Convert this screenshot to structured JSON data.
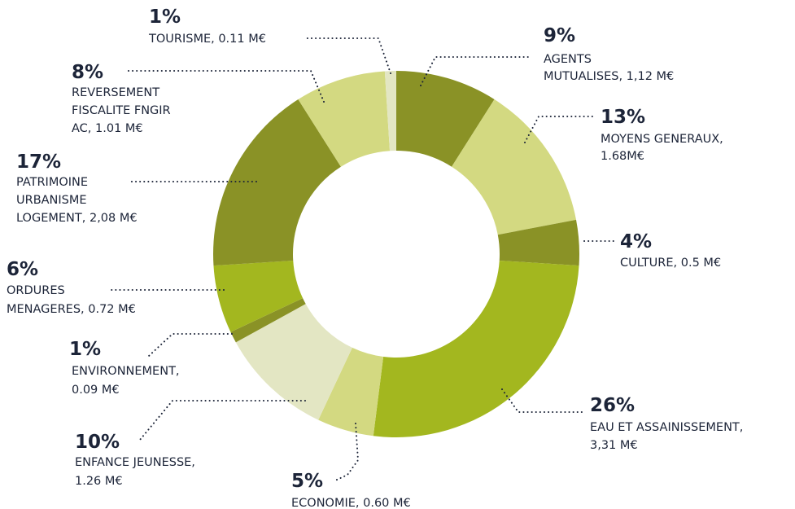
{
  "chart_data": {
    "type": "pie",
    "categories": [
      [
        "AGENTS",
        "MUTUALISES, 1,12 M€"
      ],
      [
        "MOYENS GENERAUX,",
        "1.68M€"
      ],
      [
        "CULTURE, 0.5 M€"
      ],
      [
        "EAU ET ASSAINISSEMENT,",
        "3,31 M€"
      ],
      [
        "ECONOMIE, 0.60 M€"
      ],
      [
        "ENFANCE JEUNESSE,",
        "1.26 M€"
      ],
      [
        "ENVIRONNEMENT,",
        "0.09 M€"
      ],
      [
        "ORDURES",
        "MENAGERES, 0.72 M€"
      ],
      [
        "PATRIMOINE",
        "URBANISME",
        "LOGEMENT, 2,08 M€"
      ],
      [
        "REVERSEMENT",
        "FISCALITE FNGIR",
        "AC, 1.01 M€"
      ],
      [
        "TOURISME, 0.11 M€"
      ]
    ],
    "values": [
      9,
      13,
      4,
      26,
      5,
      10,
      1,
      6,
      17,
      8,
      1
    ],
    "value_labels": [
      "9%",
      "13%",
      "4%",
      "26%",
      "5%",
      "10%",
      "1%",
      "6%",
      "17%",
      "8%",
      "1%"
    ],
    "colors": [
      "#8a9226",
      "#d3d981",
      "#8a9226",
      "#a3b71f",
      "#d3d981",
      "#e3e6c3",
      "#8a9226",
      "#a3b71f",
      "#8a9226",
      "#d3d981",
      "#e3e6c3"
    ]
  }
}
